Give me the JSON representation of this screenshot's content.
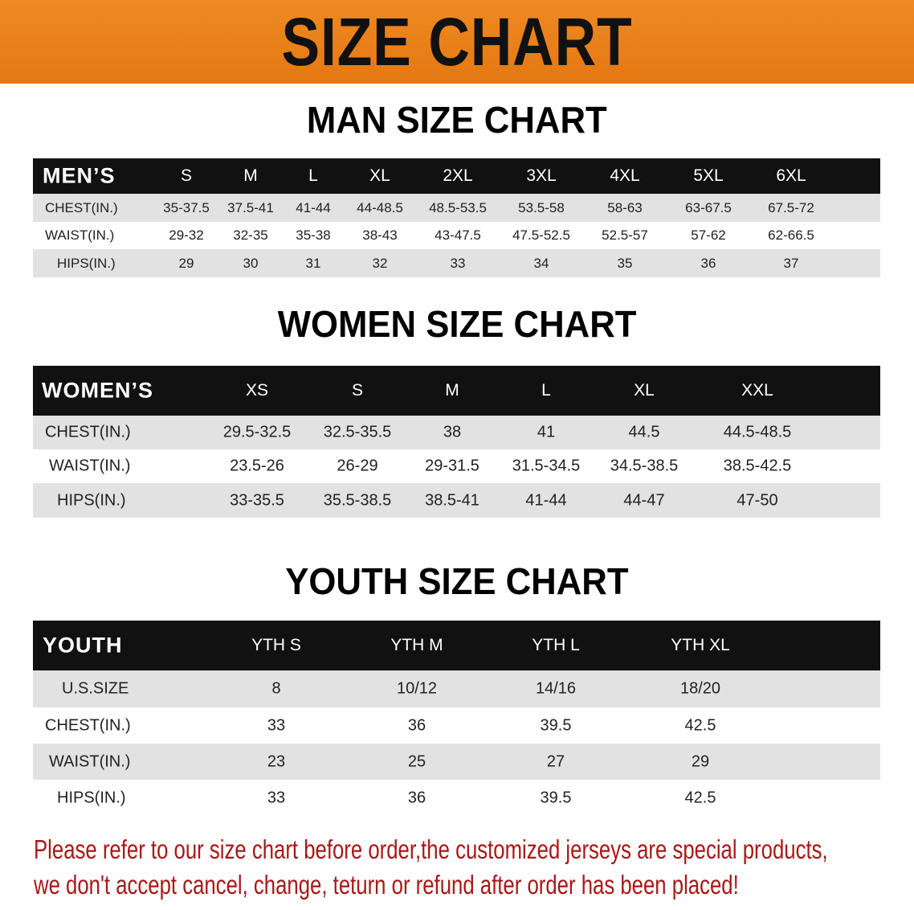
{
  "banner_title": "SIZE CHART",
  "men": {
    "title": "MAN SIZE CHART",
    "header": [
      "MEN’S",
      "S",
      "M",
      "L",
      "XL",
      "2XL",
      "3XL",
      "4XL",
      "5XL",
      "6XL"
    ],
    "rows": [
      [
        "CHEST(IN.)",
        "35-37.5",
        "37.5-41",
        "41-44",
        "44-48.5",
        "48.5-53.5",
        "53.5-58",
        "58-63",
        "63-67.5",
        "67.5-72"
      ],
      [
        "WAIST(IN.)",
        "29-32",
        "32-35",
        "35-38",
        "38-43",
        "43-47.5",
        "47.5-52.5",
        "52.5-57",
        "57-62",
        "62-66.5"
      ],
      [
        "HIPS(IN.)",
        "29",
        "30",
        "31",
        "32",
        "33",
        "34",
        "35",
        "36",
        "37"
      ]
    ]
  },
  "women": {
    "title": "WOMEN SIZE CHART",
    "header": [
      "WOMEN’S",
      "XS",
      "S",
      "M",
      "L",
      "XL",
      "XXL"
    ],
    "rows": [
      [
        "CHEST(IN.)",
        "29.5-32.5",
        "32.5-35.5",
        "38",
        "41",
        "44.5",
        "44.5-48.5"
      ],
      [
        "WAIST(IN.)",
        "23.5-26",
        "26-29",
        "29-31.5",
        "31.5-34.5",
        "34.5-38.5",
        "38.5-42.5"
      ],
      [
        "HIPS(IN.)",
        "33-35.5",
        "35.5-38.5",
        "38.5-41",
        "41-44",
        "44-47",
        "47-50"
      ]
    ]
  },
  "youth": {
    "title": "YOUTH SIZE CHART",
    "header": [
      "YOUTH",
      "YTH S",
      "YTH M",
      "YTH L",
      "YTH XL"
    ],
    "rows": [
      [
        "U.S.SIZE",
        "8",
        "10/12",
        "14/16",
        "18/20"
      ],
      [
        "CHEST(IN.)",
        "33",
        "36",
        "39.5",
        "42.5"
      ],
      [
        "WAIST(IN.)",
        "23",
        "25",
        "27",
        "29"
      ],
      [
        "HIPS(IN.)",
        "33",
        "36",
        "39.5",
        "42.5"
      ]
    ]
  },
  "note": {
    "line1": "Please refer to our size chart before order,the customized jerseys are special products,",
    "line2": "we don't accept cancel, change, teturn or refund after order has been placed!"
  },
  "colors": {
    "banner": "#e8801a",
    "header_bg": "#111111",
    "row_gray": "#e2e2e2",
    "note": "#a81818"
  }
}
